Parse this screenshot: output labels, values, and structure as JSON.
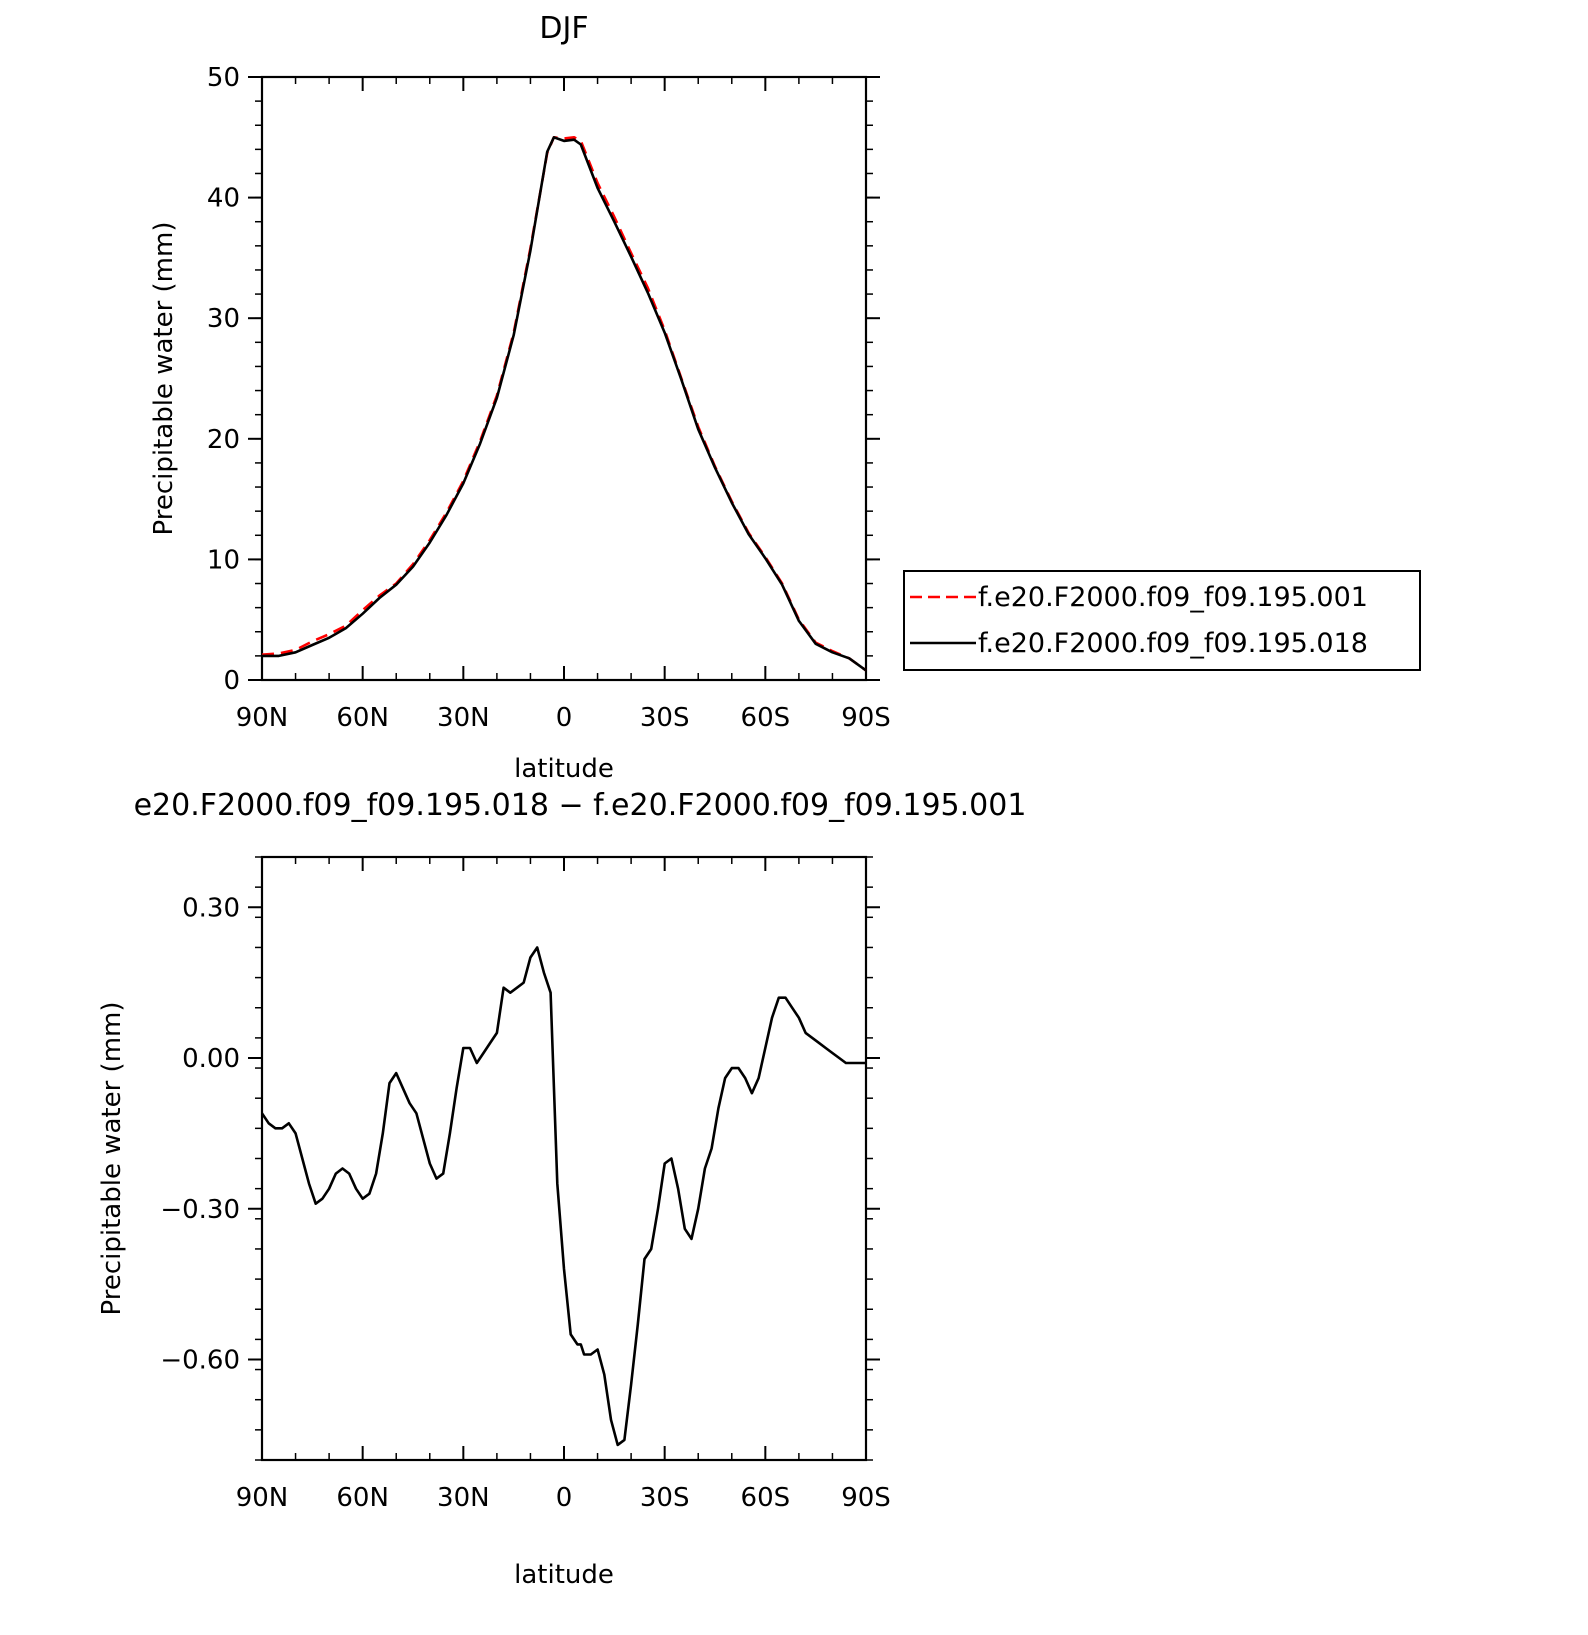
{
  "chart_data": [
    {
      "type": "line",
      "title": "DJF",
      "xlabel": "latitude",
      "ylabel": "Precipitable water (mm)",
      "xlim": [
        90,
        -90
      ],
      "ylim": [
        0,
        50
      ],
      "x_ticks": [
        {
          "value": 90,
          "label": "90N"
        },
        {
          "value": 60,
          "label": "60N"
        },
        {
          "value": 30,
          "label": "30N"
        },
        {
          "value": 0,
          "label": "0"
        },
        {
          "value": -30,
          "label": "30S"
        },
        {
          "value": -60,
          "label": "60S"
        },
        {
          "value": -90,
          "label": "90S"
        }
      ],
      "y_ticks": [
        {
          "value": 0,
          "label": "0"
        },
        {
          "value": 10,
          "label": "10"
        },
        {
          "value": 20,
          "label": "20"
        },
        {
          "value": 30,
          "label": "30"
        },
        {
          "value": 40,
          "label": "40"
        },
        {
          "value": 50,
          "label": "50"
        }
      ],
      "legend_position": "right",
      "x": [
        90,
        85,
        80,
        75,
        70,
        65,
        60,
        55,
        50,
        45,
        40,
        35,
        30,
        25,
        20,
        15,
        10,
        5,
        3,
        0,
        -3,
        -5,
        -10,
        -15,
        -20,
        -25,
        -30,
        -35,
        -40,
        -45,
        -50,
        -55,
        -60,
        -65,
        -70,
        -75,
        -80,
        -85,
        -90
      ],
      "series": [
        {
          "name": "f.e20.F2000.f09_f09.195.001",
          "color": "#ff0000",
          "dash": "dashed",
          "values": [
            2.1,
            2.2,
            2.5,
            3.2,
            3.8,
            4.5,
            5.8,
            7.0,
            8.0,
            9.6,
            11.6,
            13.9,
            16.5,
            19.8,
            23.6,
            28.8,
            35.8,
            43.7,
            45.0,
            44.9,
            45.0,
            44.7,
            41.2,
            38.4,
            35.4,
            32.5,
            29.0,
            25.0,
            21.0,
            17.7,
            14.8,
            12.2,
            10.2,
            8.0,
            5.0,
            3.1,
            2.4,
            1.8,
            0.8
          ]
        },
        {
          "name": "f.e20.F2000.f09_f09.195.018",
          "color": "#000000",
          "dash": "solid",
          "values": [
            2.0,
            2.0,
            2.3,
            2.9,
            3.5,
            4.3,
            5.5,
            6.8,
            7.9,
            9.4,
            11.4,
            13.7,
            16.3,
            19.6,
            23.4,
            28.6,
            35.6,
            43.8,
            45.0,
            44.7,
            44.8,
            44.4,
            40.8,
            38.0,
            35.1,
            32.1,
            28.8,
            24.9,
            20.8,
            17.6,
            14.7,
            12.1,
            10.1,
            7.9,
            4.9,
            3.0,
            2.3,
            1.8,
            0.8
          ]
        }
      ]
    },
    {
      "type": "line",
      "title": "e20.F2000.f09_f09.195.018 − f.e20.F2000.f09_f09.195.001",
      "xlabel": "latitude",
      "ylabel": "Precipitable water (mm)",
      "xlim": [
        90,
        -90
      ],
      "ylim": [
        -0.8,
        0.4
      ],
      "x_ticks": [
        {
          "value": 90,
          "label": "90N"
        },
        {
          "value": 60,
          "label": "60N"
        },
        {
          "value": 30,
          "label": "30N"
        },
        {
          "value": 0,
          "label": "0"
        },
        {
          "value": -30,
          "label": "30S"
        },
        {
          "value": -60,
          "label": "60S"
        },
        {
          "value": -90,
          "label": "90S"
        }
      ],
      "y_ticks": [
        {
          "value": 0.3,
          "label": "0.30"
        },
        {
          "value": 0.0,
          "label": "0.00"
        },
        {
          "value": -0.3,
          "label": "−0.30"
        },
        {
          "value": -0.6,
          "label": "−0.60"
        }
      ],
      "x": [
        90,
        88,
        86,
        84,
        82,
        80,
        78,
        76,
        74,
        72,
        70,
        68,
        66,
        64,
        62,
        60,
        58,
        56,
        54,
        52,
        50,
        48,
        46,
        44,
        42,
        40,
        38,
        36,
        34,
        32,
        30,
        28,
        26,
        24,
        22,
        20,
        18,
        16,
        14,
        12,
        10,
        8,
        6,
        4,
        2,
        0,
        -2,
        -4,
        -5,
        -6,
        -8,
        -10,
        -12,
        -14,
        -16,
        -18,
        -20,
        -22,
        -24,
        -26,
        -28,
        -30,
        -32,
        -34,
        -36,
        -38,
        -40,
        -42,
        -44,
        -46,
        -48,
        -50,
        -52,
        -54,
        -56,
        -58,
        -60,
        -62,
        -64,
        -66,
        -68,
        -70,
        -72,
        -74,
        -76,
        -78,
        -80,
        -82,
        -84,
        -86,
        -88,
        -90
      ],
      "series": [
        {
          "name": "",
          "color": "#000000",
          "dash": "solid",
          "values": [
            -0.11,
            -0.13,
            -0.14,
            -0.14,
            -0.13,
            -0.15,
            -0.2,
            -0.25,
            -0.29,
            -0.28,
            -0.26,
            -0.23,
            -0.22,
            -0.23,
            -0.26,
            -0.28,
            -0.27,
            -0.23,
            -0.15,
            -0.05,
            -0.03,
            -0.06,
            -0.09,
            -0.11,
            -0.16,
            -0.21,
            -0.24,
            -0.23,
            -0.15,
            -0.06,
            0.02,
            0.02,
            -0.01,
            0.01,
            0.03,
            0.05,
            0.14,
            0.13,
            0.14,
            0.15,
            0.2,
            0.22,
            0.17,
            0.13,
            -0.25,
            -0.42,
            -0.55,
            -0.57,
            -0.57,
            -0.59,
            -0.59,
            -0.58,
            -0.63,
            -0.72,
            -0.77,
            -0.76,
            -0.65,
            -0.53,
            -0.4,
            -0.38,
            -0.3,
            -0.21,
            -0.2,
            -0.26,
            -0.34,
            -0.36,
            -0.3,
            -0.22,
            -0.18,
            -0.1,
            -0.04,
            -0.02,
            -0.02,
            -0.04,
            -0.07,
            -0.04,
            0.02,
            0.08,
            0.12,
            0.12,
            0.1,
            0.08,
            0.05,
            0.04,
            0.03,
            0.02,
            0.01,
            0.0,
            -0.01,
            -0.01,
            -0.01,
            -0.01
          ]
        }
      ]
    }
  ]
}
